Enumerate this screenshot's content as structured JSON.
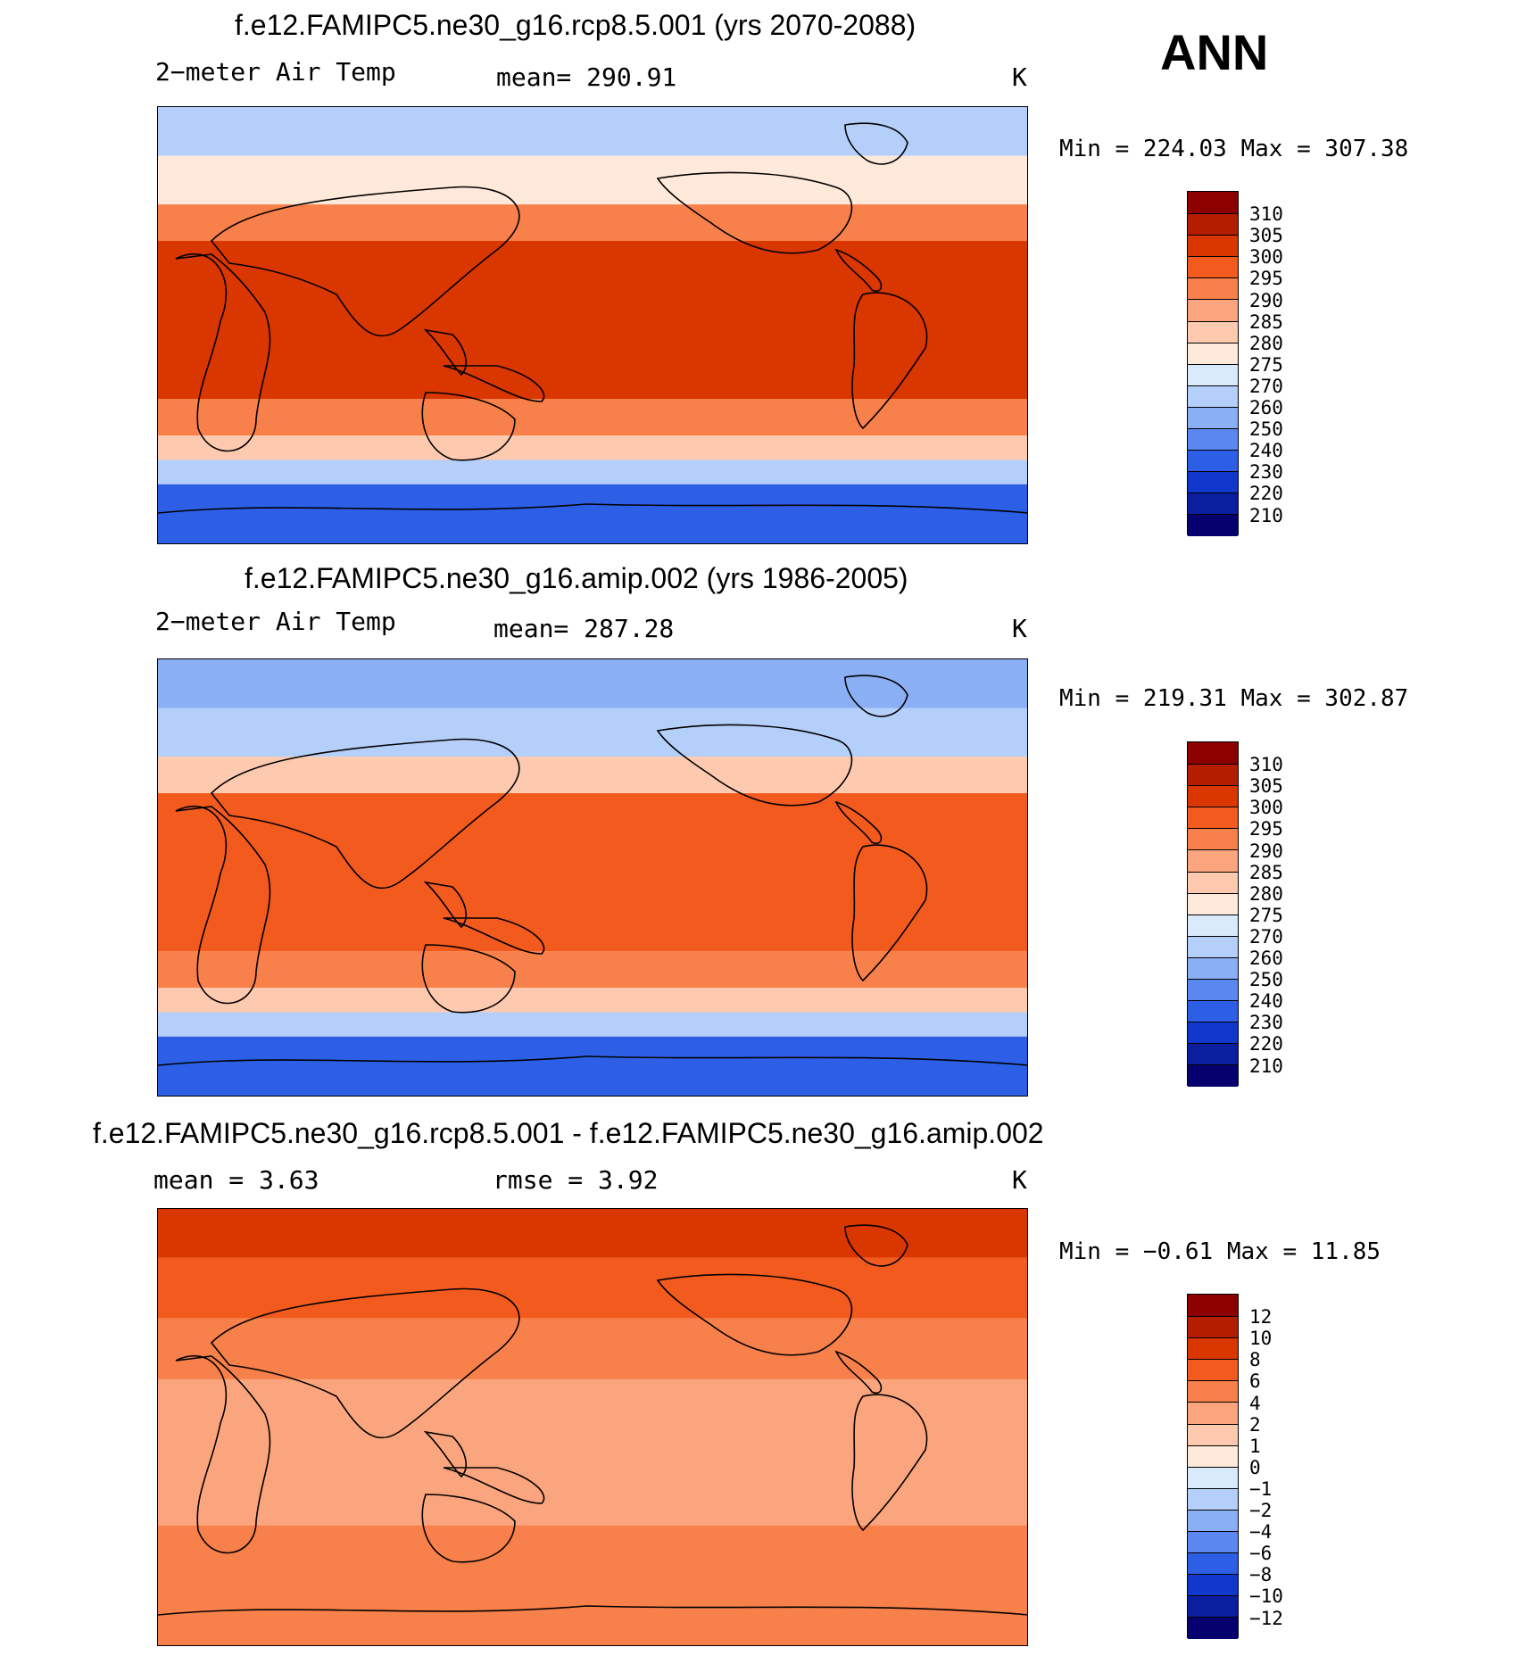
{
  "season": "ANN",
  "panels": [
    {
      "title": "f.e12.FAMIPC5.ne30_g16.rcp8.5.001 (yrs 2070-2088)",
      "variable": "2−meter Air Temp",
      "stat": "mean=  290.91",
      "units": "K",
      "minmax": "Min  =  224.03  Max  =  307.38",
      "colorbar": {
        "labels": [
          "310",
          "305",
          "300",
          "295",
          "290",
          "285",
          "280",
          "275",
          "270",
          "260",
          "250",
          "240",
          "230",
          "220",
          "210"
        ],
        "colors": [
          "#8c0000",
          "#b51d00",
          "#da3600",
          "#f25a1e",
          "#f8804a",
          "#fba57e",
          "#fdcab0",
          "#fee9da",
          "#d9ebfb",
          "#b4cffa",
          "#8aaff5",
          "#5a88f0",
          "#2c5fe6",
          "#1038cc",
          "#0a1fa0",
          "#05006e"
        ]
      },
      "map": {
        "data_bands": [
          {
            "lat_range": [
              70,
              90
            ],
            "level": "260"
          },
          {
            "lat_range": [
              50,
              70
            ],
            "level": "275"
          },
          {
            "lat_range": [
              35,
              50
            ],
            "level": "290"
          },
          {
            "lat_range": [
              -30,
              35
            ],
            "level": "300"
          },
          {
            "lat_range": [
              -45,
              -30
            ],
            "level": "290"
          },
          {
            "lat_range": [
              -55,
              -45
            ],
            "level": "280"
          },
          {
            "lat_range": [
              -65,
              -55
            ],
            "level": "260"
          },
          {
            "lat_range": [
              -90,
              -65
            ],
            "level": "230"
          }
        ]
      }
    },
    {
      "title": "f.e12.FAMIPC5.ne30_g16.amip.002 (yrs 1986-2005)",
      "variable": "2−meter Air Temp",
      "stat": "mean=  287.28",
      "units": "K",
      "minmax": "Min  =  219.31  Max  =  302.87",
      "colorbar": {
        "labels": [
          "310",
          "305",
          "300",
          "295",
          "290",
          "285",
          "280",
          "275",
          "270",
          "260",
          "250",
          "240",
          "230",
          "220",
          "210"
        ],
        "colors": [
          "#8c0000",
          "#b51d00",
          "#da3600",
          "#f25a1e",
          "#f8804a",
          "#fba57e",
          "#fdcab0",
          "#fee9da",
          "#d9ebfb",
          "#b4cffa",
          "#8aaff5",
          "#5a88f0",
          "#2c5fe6",
          "#1038cc",
          "#0a1fa0",
          "#05006e"
        ]
      },
      "map": {
        "data_bands": [
          {
            "lat_range": [
              70,
              90
            ],
            "level": "250"
          },
          {
            "lat_range": [
              50,
              70
            ],
            "level": "260"
          },
          {
            "lat_range": [
              35,
              50
            ],
            "level": "280"
          },
          {
            "lat_range": [
              -30,
              35
            ],
            "level": "295"
          },
          {
            "lat_range": [
              -45,
              -30
            ],
            "level": "290"
          },
          {
            "lat_range": [
              -55,
              -45
            ],
            "level": "280"
          },
          {
            "lat_range": [
              -65,
              -55
            ],
            "level": "260"
          },
          {
            "lat_range": [
              -90,
              -65
            ],
            "level": "230"
          }
        ]
      }
    },
    {
      "title": "f.e12.FAMIPC5.ne30_g16.rcp8.5.001 - f.e12.FAMIPC5.ne30_g16.amip.002",
      "variable": "mean =     3.63",
      "stat": "rmse =     3.92",
      "units": "K",
      "minmax": "Min  =   −0.61  Max  =    11.85",
      "colorbar": {
        "labels": [
          "12",
          "10",
          "8",
          "6",
          "4",
          "2",
          "1",
          "0",
          "−1",
          "−2",
          "−4",
          "−6",
          "−8",
          "−10",
          "−12"
        ],
        "colors": [
          "#8c0000",
          "#b51d00",
          "#da3600",
          "#f25a1e",
          "#f8804a",
          "#fba57e",
          "#fdcab0",
          "#fee9da",
          "#d9ebfb",
          "#b4cffa",
          "#8aaff5",
          "#5a88f0",
          "#2c5fe6",
          "#1038cc",
          "#0a1fa0",
          "#05006e"
        ]
      },
      "map": {
        "data_bands": [
          {
            "lat_range": [
              70,
              90
            ],
            "level": "8"
          },
          {
            "lat_range": [
              45,
              70
            ],
            "level": "6"
          },
          {
            "lat_range": [
              20,
              45
            ],
            "level": "4"
          },
          {
            "lat_range": [
              -40,
              20
            ],
            "level": "2"
          },
          {
            "lat_range": [
              -55,
              -40
            ],
            "level": "4"
          },
          {
            "lat_range": [
              -90,
              -55
            ],
            "level": "4"
          }
        ]
      }
    }
  ]
}
